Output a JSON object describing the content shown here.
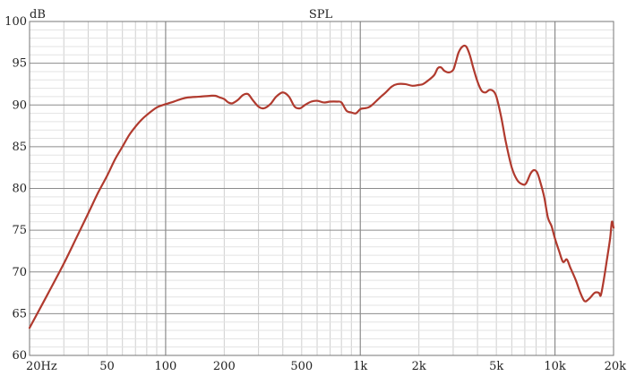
{
  "chart_data": {
    "type": "line",
    "title": "SPL",
    "ylabel": "dB",
    "xlabel": "",
    "x_scale": "log",
    "xlim": [
      20,
      20000
    ],
    "ylim": [
      60,
      100
    ],
    "grid": true,
    "x_tick_labels": [
      {
        "value": 20,
        "label": "20Hz"
      },
      {
        "value": 50,
        "label": "50"
      },
      {
        "value": 100,
        "label": "100"
      },
      {
        "value": 200,
        "label": "200"
      },
      {
        "value": 500,
        "label": "500"
      },
      {
        "value": 1000,
        "label": "1k"
      },
      {
        "value": 2000,
        "label": "2k"
      },
      {
        "value": 5000,
        "label": "5k"
      },
      {
        "value": 10000,
        "label": "10k"
      },
      {
        "value": 20000,
        "label": "20k"
      }
    ],
    "y_ticks": [
      60,
      65,
      70,
      75,
      80,
      85,
      90,
      95,
      100
    ],
    "series": [
      {
        "color": "#b03a2e",
        "points": [
          [
            20,
            63.3
          ],
          [
            25,
            67.5
          ],
          [
            30,
            71.0
          ],
          [
            35,
            74.2
          ],
          [
            40,
            77.0
          ],
          [
            45,
            79.5
          ],
          [
            50,
            81.5
          ],
          [
            55,
            83.5
          ],
          [
            60,
            85.0
          ],
          [
            65,
            86.4
          ],
          [
            70,
            87.4
          ],
          [
            75,
            88.2
          ],
          [
            80,
            88.8
          ],
          [
            90,
            89.7
          ],
          [
            100,
            90.1
          ],
          [
            110,
            90.4
          ],
          [
            120,
            90.7
          ],
          [
            130,
            90.9
          ],
          [
            150,
            91.0
          ],
          [
            170,
            91.1
          ],
          [
            180,
            91.1
          ],
          [
            190,
            90.9
          ],
          [
            200,
            90.7
          ],
          [
            210,
            90.3
          ],
          [
            220,
            90.2
          ],
          [
            235,
            90.6
          ],
          [
            250,
            91.2
          ],
          [
            265,
            91.3
          ],
          [
            280,
            90.6
          ],
          [
            300,
            89.8
          ],
          [
            320,
            89.6
          ],
          [
            345,
            90.1
          ],
          [
            370,
            91.0
          ],
          [
            400,
            91.5
          ],
          [
            430,
            91.0
          ],
          [
            460,
            89.8
          ],
          [
            490,
            89.6
          ],
          [
            520,
            90.0
          ],
          [
            560,
            90.4
          ],
          [
            600,
            90.5
          ],
          [
            650,
            90.3
          ],
          [
            700,
            90.4
          ],
          [
            760,
            90.4
          ],
          [
            800,
            90.3
          ],
          [
            850,
            89.3
          ],
          [
            900,
            89.1
          ],
          [
            950,
            89.0
          ],
          [
            1000,
            89.5
          ],
          [
            1050,
            89.6
          ],
          [
            1100,
            89.7
          ],
          [
            1150,
            90.0
          ],
          [
            1250,
            90.8
          ],
          [
            1350,
            91.5
          ],
          [
            1450,
            92.2
          ],
          [
            1550,
            92.5
          ],
          [
            1700,
            92.5
          ],
          [
            1850,
            92.3
          ],
          [
            2000,
            92.4
          ],
          [
            2100,
            92.5
          ],
          [
            2250,
            93.0
          ],
          [
            2400,
            93.6
          ],
          [
            2500,
            94.4
          ],
          [
            2600,
            94.5
          ],
          [
            2700,
            94.1
          ],
          [
            2850,
            93.9
          ],
          [
            3000,
            94.2
          ],
          [
            3100,
            95.2
          ],
          [
            3200,
            96.3
          ],
          [
            3350,
            97.0
          ],
          [
            3500,
            97.0
          ],
          [
            3650,
            96.0
          ],
          [
            3800,
            94.5
          ],
          [
            4000,
            92.8
          ],
          [
            4200,
            91.7
          ],
          [
            4400,
            91.5
          ],
          [
            4600,
            91.8
          ],
          [
            4800,
            91.7
          ],
          [
            5000,
            91.0
          ],
          [
            5300,
            88.5
          ],
          [
            5600,
            85.5
          ],
          [
            6000,
            82.5
          ],
          [
            6400,
            81.0
          ],
          [
            6800,
            80.5
          ],
          [
            7100,
            80.6
          ],
          [
            7500,
            81.8
          ],
          [
            7800,
            82.2
          ],
          [
            8100,
            81.9
          ],
          [
            8400,
            80.8
          ],
          [
            8800,
            79.0
          ],
          [
            9200,
            76.5
          ],
          [
            9600,
            75.5
          ],
          [
            10000,
            74.0
          ],
          [
            10500,
            72.5
          ],
          [
            11000,
            71.2
          ],
          [
            11500,
            71.5
          ],
          [
            12000,
            70.5
          ],
          [
            12800,
            69.0
          ],
          [
            13500,
            67.5
          ],
          [
            14200,
            66.5
          ],
          [
            15000,
            66.8
          ],
          [
            16000,
            67.5
          ],
          [
            16800,
            67.5
          ],
          [
            17200,
            67.2
          ],
          [
            17800,
            69.0
          ],
          [
            18500,
            71.5
          ],
          [
            19200,
            74.0
          ],
          [
            19600,
            76.0
          ],
          [
            20000,
            75.3
          ]
        ]
      }
    ]
  }
}
